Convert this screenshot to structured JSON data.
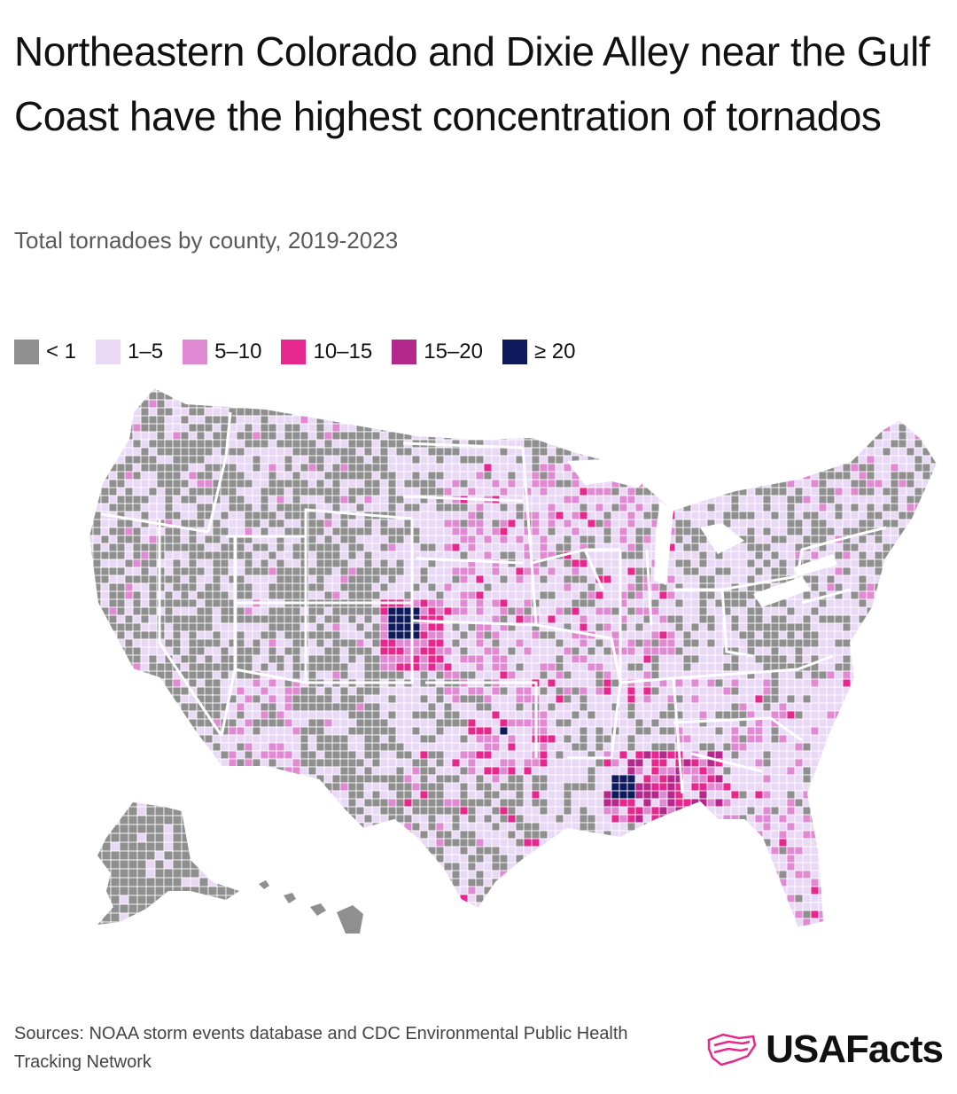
{
  "header": {
    "title": "Northeastern Colorado and Dixie Alley near the Gulf Coast have the highest concentration of tornados",
    "subtitle": "Total tornadoes by county, 2019-2023"
  },
  "legend": [
    {
      "label": "< 1",
      "color": "#8f8f8f"
    },
    {
      "label": "1–5",
      "color": "#e9d9f6"
    },
    {
      "label": "5–10",
      "color": "#e08ad3"
    },
    {
      "label": "10–15",
      "color": "#e6288e"
    },
    {
      "label": "15–20",
      "color": "#b4278b"
    },
    {
      "label": "≥ 20",
      "color": "#0f1a5c"
    }
  ],
  "map": {
    "type": "choropleth",
    "region": "United States counties",
    "palette": {
      "lt1": "#8f8f8f",
      "r1_5": "#e9d9f6",
      "r5_10": "#e08ad3",
      "r10_15": "#e6288e",
      "r15_20": "#b4278b",
      "ge20": "#0f1a5c",
      "border": "#ffffff"
    },
    "hotspots": [
      {
        "area": "Northeastern Colorado",
        "class": "ge20"
      },
      {
        "area": "Dixie Alley (Mississippi / Alabama)",
        "class": "ge20"
      },
      {
        "area": "Central Oklahoma",
        "class": "ge20"
      }
    ]
  },
  "footer": {
    "sources": "Sources: NOAA storm events database and CDC Environmental Public Health Tracking Network",
    "brand": "USAFacts"
  }
}
